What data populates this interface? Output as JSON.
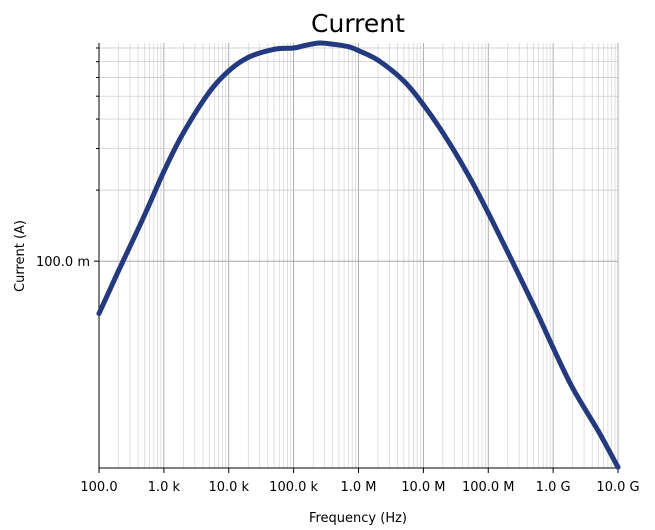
{
  "chart_data": {
    "type": "line",
    "title": "Current",
    "xlabel": "Frequency (Hz)",
    "ylabel": "Current (A)",
    "x_scale": "log",
    "y_scale": "log",
    "xlim": [
      100,
      10000000000
    ],
    "ylim": [
      0.0133,
      0.84
    ],
    "grid": true,
    "x_ticks": [
      {
        "value": 100,
        "label": "100.0"
      },
      {
        "value": 1000,
        "label": "1.0 k"
      },
      {
        "value": 10000,
        "label": "10.0 k"
      },
      {
        "value": 100000,
        "label": "100.0 k"
      },
      {
        "value": 1000000,
        "label": "1.0 M"
      },
      {
        "value": 10000000,
        "label": "10.0 M"
      },
      {
        "value": 100000000,
        "label": "100.0 M"
      },
      {
        "value": 1000000000,
        "label": "1.0 G"
      },
      {
        "value": 10000000000,
        "label": "10.0 G"
      }
    ],
    "y_ticks": [
      {
        "value": 0.1,
        "label": "100.0 m"
      }
    ],
    "y_minor_ticks": [
      0.2,
      0.3,
      0.4,
      0.5,
      0.6,
      0.7,
      0.8
    ],
    "series": [
      {
        "color": "#243a7f",
        "x": [
          100,
          200,
          500,
          1000,
          2000,
          5000,
          10000,
          20000,
          50000,
          100000,
          150000,
          250000,
          400000,
          700000,
          1000000,
          2000000,
          5000000,
          10000000,
          20000000,
          50000000,
          100000000,
          200000000,
          500000000,
          1000000000,
          2000000000,
          5000000000,
          10000000000
        ],
        "y": [
          0.06,
          0.091,
          0.156,
          0.24,
          0.35,
          0.52,
          0.64,
          0.73,
          0.79,
          0.8,
          0.82,
          0.84,
          0.83,
          0.81,
          0.78,
          0.71,
          0.58,
          0.46,
          0.35,
          0.23,
          0.16,
          0.109,
          0.065,
          0.043,
          0.029,
          0.019,
          0.0134
        ]
      }
    ]
  }
}
